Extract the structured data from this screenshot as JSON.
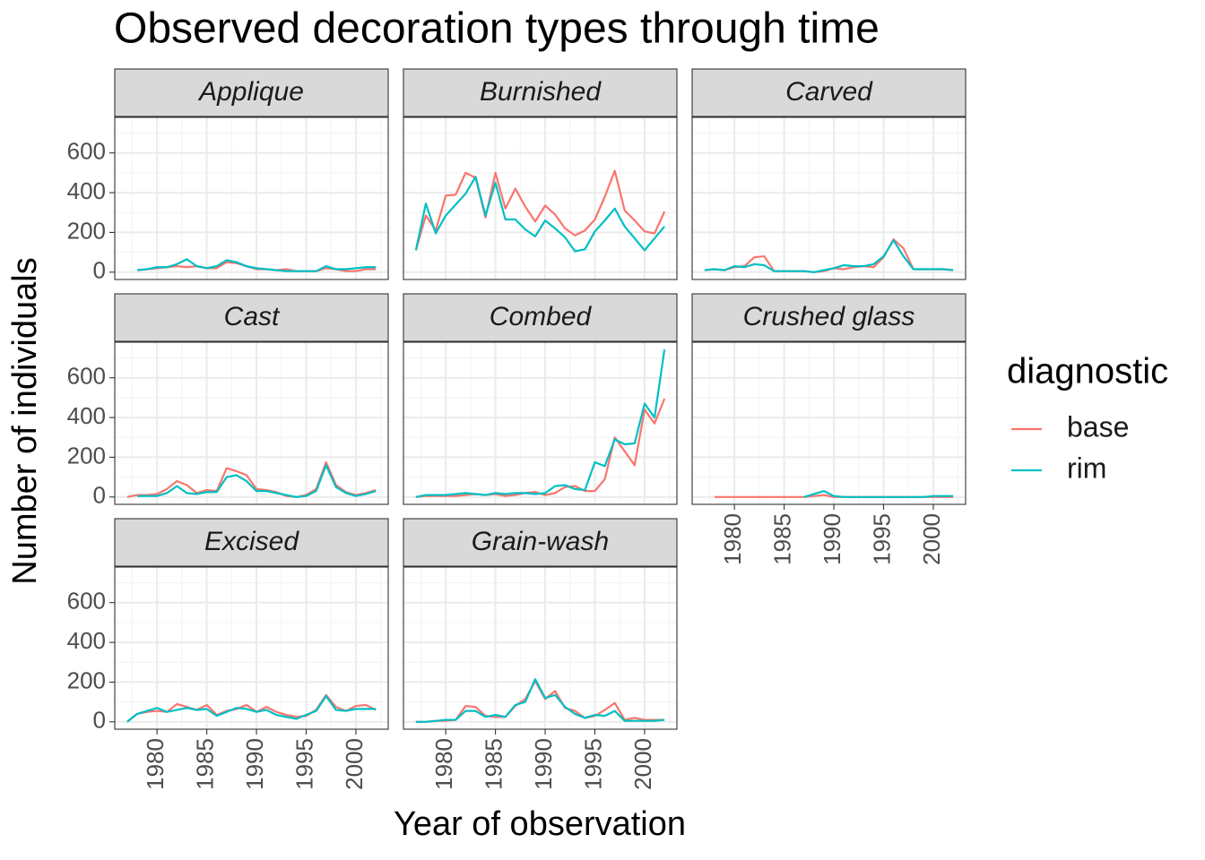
{
  "chart_data": {
    "type": "line",
    "title": "Observed decoration types through time",
    "x_label": "Year of observation",
    "y_label": "Number of individuals",
    "legend_title": "diagnostic",
    "x": [
      1977,
      1978,
      1979,
      1980,
      1981,
      1982,
      1983,
      1984,
      1985,
      1986,
      1987,
      1988,
      1989,
      1990,
      1991,
      1992,
      1993,
      1994,
      1995,
      1996,
      1997,
      1998,
      1999,
      2000,
      2001,
      2002
    ],
    "xlim": [
      1975.75,
      2003.25
    ],
    "ylim": [
      -37,
      779
    ],
    "xticks": [
      1980,
      1985,
      1990,
      1995,
      2000
    ],
    "yticks": [
      0,
      200,
      400,
      600
    ],
    "x_minor_grid": [
      1977.5,
      1982.5,
      1987.5,
      1992.5,
      1997.5,
      2002.5
    ],
    "y_minor_grid": [
      100,
      300,
      500,
      700
    ],
    "grid": true,
    "panels": [
      {
        "title": "Applique",
        "series": [
          {
            "name": "base",
            "color": "#f8766d",
            "values": [
              null,
              10,
              15,
              20,
              25,
              30,
              25,
              30,
              20,
              20,
              50,
              45,
              30,
              15,
              15,
              10,
              15,
              5,
              5,
              5,
              20,
              15,
              5,
              5,
              15,
              15
            ]
          },
          {
            "name": "rim",
            "color": "#00bfc4",
            "values": [
              null,
              10,
              15,
              25,
              25,
              40,
              65,
              30,
              20,
              30,
              60,
              50,
              30,
              20,
              15,
              10,
              5,
              5,
              5,
              5,
              30,
              15,
              15,
              20,
              25,
              25
            ]
          }
        ]
      },
      {
        "title": "Burnished",
        "series": [
          {
            "name": "base",
            "color": "#f8766d",
            "values": [
              110,
              285,
              210,
              385,
              390,
              500,
              475,
              275,
              500,
              320,
              420,
              330,
              255,
              335,
              290,
              220,
              185,
              210,
              265,
              380,
              510,
              310,
              260,
              205,
              195,
              305
            ]
          },
          {
            "name": "rim",
            "color": "#00bfc4",
            "values": [
              110,
              345,
              195,
              285,
              340,
              395,
              480,
              285,
              450,
              265,
              265,
              215,
              180,
              260,
              220,
              175,
              105,
              115,
              205,
              260,
              320,
              230,
              170,
              110,
              170,
              230
            ]
          }
        ]
      },
      {
        "title": "Carved",
        "series": [
          {
            "name": "base",
            "color": "#f8766d",
            "values": [
              10,
              15,
              10,
              25,
              30,
              75,
              80,
              5,
              5,
              5,
              5,
              0,
              5,
              20,
              15,
              25,
              30,
              25,
              75,
              165,
              120,
              15,
              15,
              15,
              15,
              10
            ]
          },
          {
            "name": "rim",
            "color": "#00bfc4",
            "values": [
              10,
              15,
              10,
              30,
              25,
              40,
              35,
              5,
              5,
              5,
              5,
              0,
              10,
              20,
              35,
              30,
              30,
              40,
              80,
              160,
              80,
              15,
              15,
              15,
              15,
              10
            ]
          }
        ]
      },
      {
        "title": "Cast",
        "series": [
          {
            "name": "base",
            "color": "#f8766d",
            "values": [
              0,
              10,
              10,
              15,
              40,
              80,
              60,
              20,
              35,
              30,
              145,
              130,
              110,
              40,
              35,
              25,
              5,
              0,
              10,
              40,
              175,
              60,
              25,
              10,
              20,
              35
            ]
          },
          {
            "name": "rim",
            "color": "#00bfc4",
            "values": [
              null,
              5,
              5,
              5,
              20,
              55,
              20,
              15,
              25,
              25,
              100,
              110,
              80,
              30,
              30,
              20,
              10,
              0,
              5,
              30,
              160,
              50,
              20,
              5,
              15,
              30
            ]
          }
        ]
      },
      {
        "title": "Combed",
        "series": [
          {
            "name": "base",
            "color": "#f8766d",
            "values": [
              0,
              5,
              5,
              5,
              5,
              10,
              15,
              10,
              15,
              5,
              10,
              20,
              25,
              10,
              20,
              50,
              55,
              30,
              30,
              90,
              300,
              230,
              160,
              440,
              370,
              495
            ]
          },
          {
            "name": "rim",
            "color": "#00bfc4",
            "values": [
              0,
              10,
              10,
              10,
              15,
              20,
              15,
              10,
              20,
              15,
              20,
              20,
              15,
              20,
              55,
              60,
              40,
              35,
              175,
              155,
              290,
              265,
              270,
              470,
              400,
              742
            ]
          }
        ]
      },
      {
        "title": "Crushed glass",
        "series": [
          {
            "name": "base",
            "color": "#f8766d",
            "values": [
              null,
              0,
              0,
              0,
              0,
              0,
              0,
              0,
              0,
              0,
              0,
              5,
              10,
              0,
              0,
              0,
              0,
              0,
              0,
              0,
              0,
              0,
              0,
              0,
              0,
              0
            ]
          },
          {
            "name": "rim",
            "color": "#00bfc4",
            "values": [
              null,
              null,
              null,
              null,
              null,
              null,
              null,
              null,
              null,
              null,
              0,
              15,
              30,
              5,
              0,
              0,
              0,
              0,
              0,
              0,
              0,
              0,
              0,
              5,
              5,
              5
            ]
          }
        ]
      },
      {
        "title": "Excised",
        "series": [
          {
            "name": "base",
            "color": "#f8766d",
            "values": [
              0,
              40,
              50,
              55,
              50,
              90,
              75,
              60,
              85,
              35,
              55,
              65,
              85,
              50,
              75,
              50,
              35,
              25,
              30,
              60,
              135,
              75,
              55,
              80,
              85,
              60
            ]
          },
          {
            "name": "rim",
            "color": "#00bfc4",
            "values": [
              0,
              40,
              55,
              70,
              50,
              60,
              70,
              60,
              65,
              30,
              50,
              70,
              65,
              50,
              60,
              35,
              25,
              15,
              35,
              55,
              130,
              60,
              55,
              65,
              65,
              65
            ]
          }
        ]
      },
      {
        "title": "Grain-wash",
        "series": [
          {
            "name": "base",
            "color": "#f8766d",
            "values": [
              0,
              0,
              5,
              5,
              10,
              80,
              75,
              30,
              25,
              25,
              80,
              115,
              205,
              115,
              155,
              70,
              55,
              20,
              30,
              60,
              95,
              10,
              20,
              10,
              10,
              10
            ]
          },
          {
            "name": "rim",
            "color": "#00bfc4",
            "values": [
              0,
              0,
              5,
              10,
              10,
              55,
              55,
              25,
              35,
              25,
              85,
              100,
              215,
              120,
              135,
              75,
              40,
              20,
              35,
              30,
              55,
              5,
              5,
              5,
              5,
              10
            ]
          }
        ]
      }
    ]
  }
}
